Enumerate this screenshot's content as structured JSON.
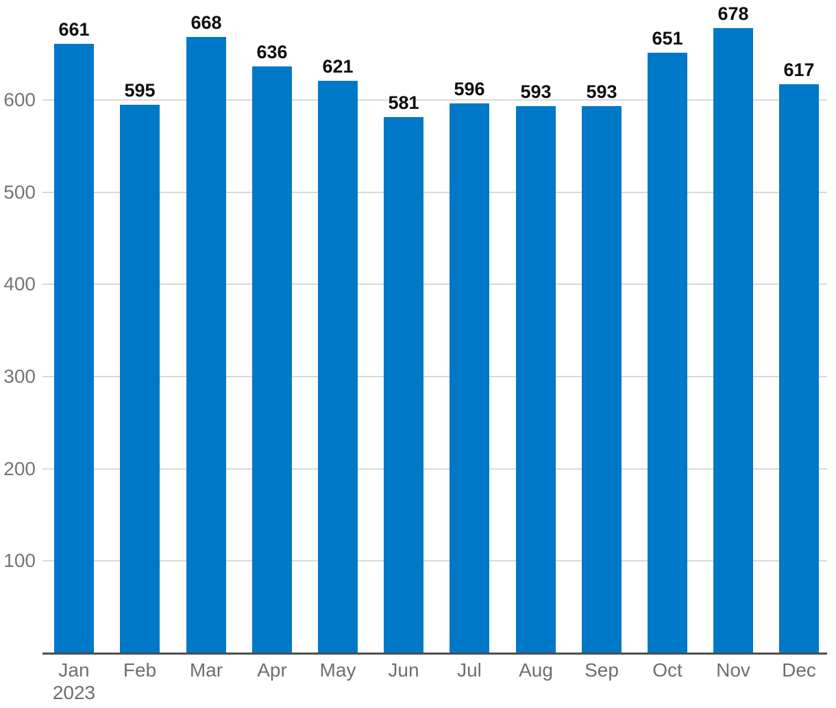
{
  "chart_data": {
    "type": "bar",
    "categories": [
      "Jan",
      "Feb",
      "Mar",
      "Apr",
      "May",
      "Jun",
      "Jul",
      "Aug",
      "Sep",
      "Oct",
      "Nov",
      "Dec"
    ],
    "first_category_year": "2023",
    "values": [
      661,
      595,
      668,
      636,
      621,
      581,
      596,
      593,
      593,
      651,
      678,
      617
    ],
    "y_ticks": [
      100,
      200,
      300,
      400,
      500,
      600
    ],
    "ylim": [
      0,
      708
    ],
    "grid": true,
    "legend_position": "none",
    "colors": {
      "bar": "#0078c8",
      "value_label": "#0d0d0d",
      "axis_line": "#4d4d4d",
      "gridline": "#d9d9d9",
      "y_tick_label": "#757575",
      "category_label": "#6e6e6e"
    }
  }
}
